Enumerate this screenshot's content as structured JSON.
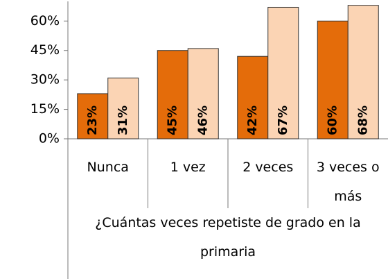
{
  "chart_data": {
    "type": "bar",
    "categories": [
      "Nunca",
      "1 vez",
      "2 veces",
      "3 veces o más"
    ],
    "x_label": "¿Cuántas veces repetiste de grado en la primaria",
    "series": [
      {
        "color": "#e46c0a",
        "label_color": "#ffffff",
        "values": [
          23,
          45,
          42,
          60
        ],
        "value_labels": [
          "23%",
          "45%",
          "42%",
          "60%"
        ]
      },
      {
        "color": "#fbd4b4",
        "label_color": "#000000",
        "values": [
          31,
          46,
          67,
          68
        ],
        "value_labels": [
          "31%",
          "46%",
          "67%",
          "68%"
        ]
      }
    ],
    "ylim": [
      0,
      70
    ],
    "yticks": [
      {
        "value": 0,
        "label": "0%"
      },
      {
        "value": 15,
        "label": "15%"
      },
      {
        "value": 30,
        "label": "30%"
      },
      {
        "value": 45,
        "label": "45%"
      },
      {
        "value": 60,
        "label": "60%"
      }
    ]
  }
}
